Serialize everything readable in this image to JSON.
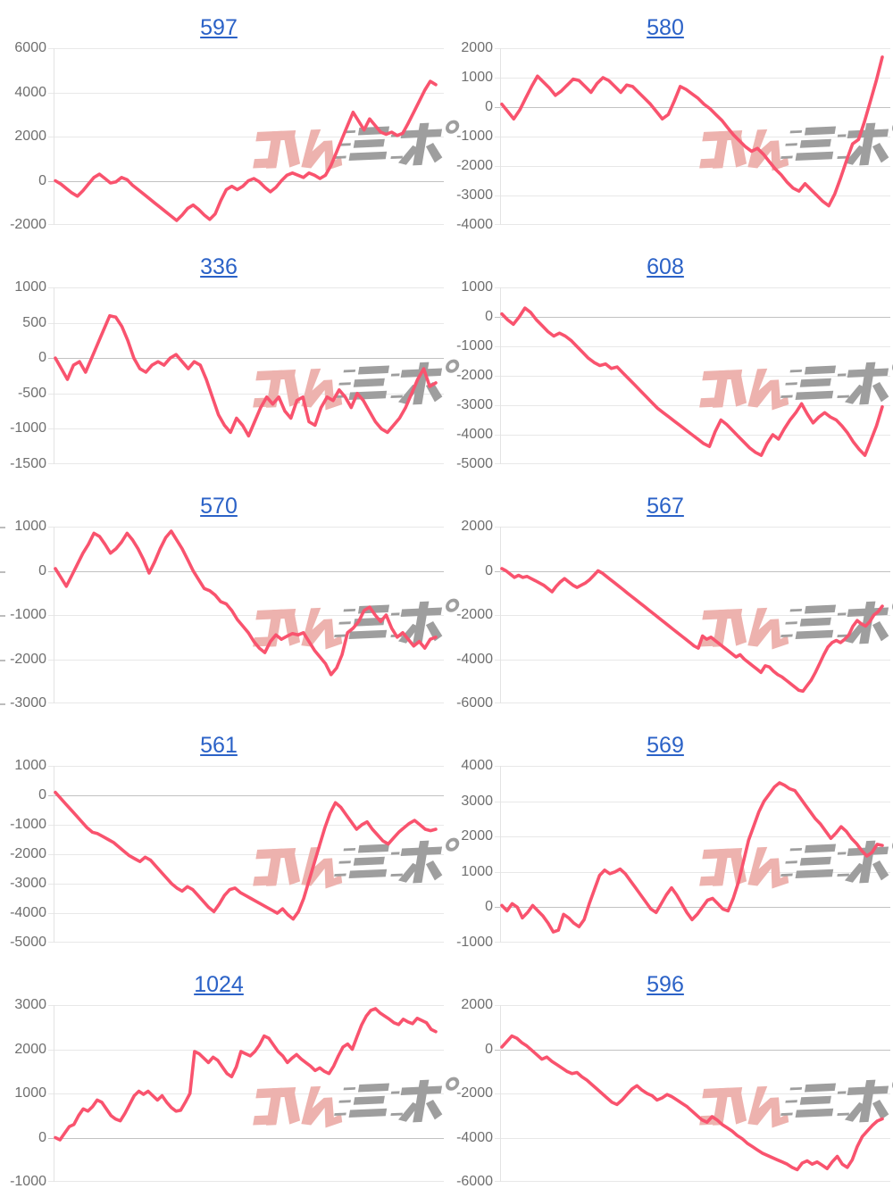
{
  "page": {
    "background": "#ffffff"
  },
  "style": {
    "title_link_color": "#2b62c7",
    "line_color": "#f9536e",
    "grid_line": "#e8e8e8",
    "zero_line": "#c2c2c2",
    "plot_border": "#e3e3e3",
    "tick_label_color": "#6f6f6f"
  },
  "watermark": {
    "text": "みんレポ",
    "pink_color": "#edb2ae",
    "gray_color": "#9e9e9e"
  },
  "chart_data": [
    {
      "type": "line",
      "title": "597",
      "ymax": 6000,
      "ymin": -2000,
      "ystep": 2000,
      "yticks": [
        "6000",
        "4000",
        "2000",
        "0",
        "-2000"
      ],
      "values": [
        0,
        -150,
        -350,
        -550,
        -700,
        -450,
        -150,
        150,
        300,
        100,
        -100,
        -50,
        150,
        50,
        -200,
        -400,
        -600,
        -800,
        -1000,
        -1200,
        -1400,
        -1600,
        -1800,
        -1550,
        -1250,
        -1100,
        -1300,
        -1550,
        -1750,
        -1500,
        -900,
        -400,
        -250,
        -400,
        -250,
        0,
        100,
        -50,
        -300,
        -500,
        -300,
        0,
        250,
        350,
        250,
        150,
        350,
        250,
        100,
        250,
        700,
        1300,
        1900,
        2500,
        3100,
        2700,
        2300,
        2800,
        2500,
        2200,
        2100,
        2200,
        2050,
        2150,
        2600,
        3100,
        3600,
        4100,
        4500,
        4350
      ]
    },
    {
      "type": "line",
      "title": "580",
      "ymax": 2000,
      "ymin": -4000,
      "ystep": 1000,
      "yticks": [
        "2000",
        "1000",
        "0",
        "-1000",
        "-2000",
        "-3000",
        "-4000"
      ],
      "values": [
        100,
        -150,
        -400,
        -100,
        300,
        700,
        1050,
        850,
        650,
        400,
        550,
        750,
        950,
        900,
        700,
        500,
        800,
        1000,
        900,
        700,
        500,
        750,
        700,
        500,
        300,
        100,
        -150,
        -400,
        -250,
        200,
        700,
        600,
        450,
        300,
        100,
        -50,
        -250,
        -450,
        -700,
        -950,
        -1150,
        -1350,
        -1500,
        -1400,
        -1600,
        -1850,
        -2100,
        -2300,
        -2550,
        -2750,
        -2850,
        -2600,
        -2800,
        -3000,
        -3200,
        -3350,
        -2950,
        -2400,
        -1800,
        -1250,
        -1100,
        -500,
        200,
        900,
        1700
      ]
    },
    {
      "type": "line",
      "title": "336",
      "ymax": 1000,
      "ymin": -1500,
      "ystep": 500,
      "yticks": [
        "1000",
        "500",
        "0",
        "-500",
        "-1000",
        "-1500"
      ],
      "values": [
        0,
        -150,
        -300,
        -100,
        -50,
        -200,
        0,
        200,
        400,
        600,
        580,
        450,
        250,
        0,
        -150,
        -200,
        -100,
        -50,
        -100,
        0,
        50,
        -50,
        -150,
        -50,
        -100,
        -300,
        -550,
        -800,
        -950,
        -1050,
        -850,
        -950,
        -1100,
        -900,
        -700,
        -550,
        -650,
        -550,
        -750,
        -850,
        -600,
        -550,
        -900,
        -950,
        -700,
        -550,
        -600,
        -450,
        -550,
        -700,
        -500,
        -600,
        -750,
        -900,
        -1000,
        -1050,
        -950,
        -850,
        -700,
        -500,
        -300,
        -150,
        -400,
        -350
      ]
    },
    {
      "type": "line",
      "title": "608",
      "ymax": 1000,
      "ymin": -5000,
      "ystep": 1000,
      "yticks": [
        "1000",
        "0",
        "-1000",
        "-2000",
        "-3000",
        "-4000",
        "-5000"
      ],
      "values": [
        100,
        -100,
        -250,
        0,
        300,
        150,
        -100,
        -300,
        -500,
        -650,
        -550,
        -650,
        -800,
        -1000,
        -1200,
        -1400,
        -1550,
        -1650,
        -1600,
        -1750,
        -1700,
        -1900,
        -2100,
        -2300,
        -2500,
        -2700,
        -2900,
        -3100,
        -3250,
        -3400,
        -3550,
        -3700,
        -3850,
        -4000,
        -4150,
        -4300,
        -4400,
        -3900,
        -3500,
        -3650,
        -3850,
        -4050,
        -4250,
        -4450,
        -4600,
        -4700,
        -4300,
        -4000,
        -4150,
        -3800,
        -3500,
        -3250,
        -2950,
        -3300,
        -3600,
        -3400,
        -3250,
        -3400,
        -3500,
        -3700,
        -3950,
        -4250,
        -4500,
        -4700,
        -4200,
        -3700,
        -3050
      ]
    },
    {
      "type": "line",
      "title": "570",
      "ymax": 1000,
      "ymin": -3000,
      "ystep": 1000,
      "yticks": [
        "1000",
        "0",
        "-1000",
        "-2000",
        "-3000"
      ],
      "edge_ticks_left": true,
      "values": [
        50,
        -150,
        -350,
        -100,
        150,
        400,
        600,
        850,
        780,
        600,
        400,
        500,
        650,
        850,
        700,
        500,
        250,
        -50,
        200,
        500,
        750,
        900,
        700,
        500,
        250,
        0,
        -200,
        -400,
        -450,
        -550,
        -700,
        -750,
        -900,
        -1100,
        -1250,
        -1400,
        -1600,
        -1750,
        -1850,
        -1600,
        -1450,
        -1550,
        -1480,
        -1420,
        -1450,
        -1400,
        -1600,
        -1800,
        -1950,
        -2100,
        -2350,
        -2200,
        -1900,
        -1400,
        -1300,
        -1150,
        -900,
        -820,
        -1000,
        -1150,
        -1000,
        -1300,
        -1500,
        -1400,
        -1550,
        -1700,
        -1600,
        -1750,
        -1550,
        -1500
      ]
    },
    {
      "type": "line",
      "title": "567",
      "ymax": 2000,
      "ymin": -6000,
      "ystep": 2000,
      "yticks": [
        "2000",
        "0",
        "-2000",
        "-4000",
        "-6000"
      ],
      "values": [
        100,
        0,
        -150,
        -300,
        -200,
        -300,
        -250,
        -350,
        -450,
        -550,
        -650,
        -800,
        -950,
        -700,
        -500,
        -350,
        -500,
        -650,
        -750,
        -650,
        -550,
        -400,
        -200,
        0,
        -100,
        -250,
        -400,
        -550,
        -700,
        -850,
        -1000,
        -1150,
        -1300,
        -1450,
        -1600,
        -1750,
        -1900,
        -2050,
        -2200,
        -2350,
        -2500,
        -2650,
        -2800,
        -2950,
        -3100,
        -3250,
        -3400,
        -3500,
        -2950,
        -3100,
        -3000,
        -3150,
        -3300,
        -3450,
        -3600,
        -3750,
        -3900,
        -3800,
        -4000,
        -4150,
        -4300,
        -4450,
        -4600,
        -4300,
        -4350,
        -4550,
        -4700,
        -4800,
        -4950,
        -5100,
        -5250,
        -5400,
        -5450,
        -5200,
        -4950,
        -4600,
        -4200,
        -3800,
        -3450,
        -3250,
        -3150,
        -3250,
        -3100,
        -2900,
        -2500,
        -2250,
        -2400,
        -2500,
        -2300,
        -2000,
        -1850,
        -1600
      ]
    },
    {
      "type": "line",
      "title": "561",
      "ymax": 1000,
      "ymin": -5000,
      "ystep": 1000,
      "yticks": [
        "1000",
        "0",
        "-1000",
        "-2000",
        "-3000",
        "-4000",
        "-5000"
      ],
      "values": [
        100,
        -100,
        -300,
        -500,
        -700,
        -900,
        -1100,
        -1250,
        -1300,
        -1400,
        -1500,
        -1600,
        -1750,
        -1900,
        -2050,
        -2150,
        -2250,
        -2100,
        -2200,
        -2400,
        -2600,
        -2800,
        -3000,
        -3150,
        -3250,
        -3100,
        -3200,
        -3400,
        -3600,
        -3800,
        -3950,
        -3700,
        -3400,
        -3200,
        -3150,
        -3300,
        -3400,
        -3500,
        -3600,
        -3700,
        -3800,
        -3900,
        -4000,
        -3850,
        -4050,
        -4200,
        -3950,
        -3500,
        -2900,
        -2300,
        -1700,
        -1100,
        -600,
        -250,
        -400,
        -650,
        -900,
        -1150,
        -1000,
        -900,
        -1150,
        -1350,
        -1550,
        -1650,
        -1450,
        -1250,
        -1100,
        -950,
        -850,
        -1000,
        -1150,
        -1200,
        -1150
      ]
    },
    {
      "type": "line",
      "title": "569",
      "ymax": 4000,
      "ymin": -1000,
      "ystep": 1000,
      "yticks": [
        "4000",
        "3000",
        "2000",
        "1000",
        "0",
        "-1000"
      ],
      "values": [
        50,
        -100,
        100,
        0,
        -300,
        -150,
        50,
        -100,
        -250,
        -450,
        -700,
        -650,
        -200,
        -300,
        -450,
        -550,
        -350,
        100,
        500,
        900,
        1050,
        950,
        1000,
        1080,
        950,
        750,
        550,
        350,
        150,
        -50,
        -150,
        100,
        350,
        550,
        350,
        100,
        -150,
        -350,
        -200,
        0,
        200,
        250,
        100,
        -50,
        -100,
        250,
        700,
        1300,
        1900,
        2300,
        2700,
        3000,
        3200,
        3400,
        3520,
        3450,
        3350,
        3300,
        3100,
        2900,
        2700,
        2500,
        2350,
        2150,
        1950,
        2100,
        2280,
        2150,
        1950,
        1800,
        1600,
        1450,
        1550,
        1780,
        1750
      ]
    },
    {
      "type": "line",
      "title": "1024",
      "ymax": 3000,
      "ymin": -1000,
      "ystep": 1000,
      "yticks": [
        "3000",
        "2000",
        "1000",
        "0",
        "-1000"
      ],
      "values": [
        0,
        -50,
        100,
        250,
        300,
        500,
        650,
        600,
        700,
        850,
        800,
        650,
        500,
        420,
        380,
        550,
        750,
        950,
        1050,
        980,
        1050,
        950,
        850,
        950,
        800,
        680,
        600,
        620,
        800,
        1000,
        1950,
        1900,
        1800,
        1700,
        1820,
        1750,
        1600,
        1450,
        1380,
        1600,
        1950,
        1900,
        1850,
        1950,
        2100,
        2300,
        2250,
        2100,
        1950,
        1850,
        1700,
        1800,
        1880,
        1780,
        1700,
        1620,
        1520,
        1580,
        1500,
        1450,
        1620,
        1850,
        2050,
        2120,
        2000,
        2280,
        2550,
        2750,
        2880,
        2920,
        2820,
        2750,
        2680,
        2600,
        2560,
        2680,
        2620,
        2580,
        2700,
        2650,
        2600,
        2450,
        2400
      ]
    },
    {
      "type": "line",
      "title": "596",
      "ymax": 2000,
      "ymin": -6000,
      "ystep": 2000,
      "yticks": [
        "2000",
        "0",
        "-2000",
        "-4000",
        "-6000"
      ],
      "values": [
        100,
        350,
        600,
        500,
        300,
        150,
        -50,
        -250,
        -450,
        -350,
        -550,
        -700,
        -850,
        -1000,
        -1100,
        -1050,
        -1250,
        -1400,
        -1600,
        -1800,
        -2000,
        -2200,
        -2400,
        -2500,
        -2300,
        -2050,
        -1800,
        -1650,
        -1850,
        -2000,
        -2100,
        -2300,
        -2200,
        -2050,
        -2150,
        -2300,
        -2450,
        -2600,
        -2800,
        -3000,
        -3200,
        -3300,
        -3050,
        -3200,
        -3400,
        -3550,
        -3700,
        -3900,
        -4050,
        -4250,
        -4400,
        -4550,
        -4700,
        -4800,
        -4900,
        -5000,
        -5100,
        -5200,
        -5350,
        -5450,
        -5150,
        -5050,
        -5200,
        -5100,
        -5250,
        -5400,
        -5100,
        -4850,
        -5200,
        -5350,
        -5000,
        -4400,
        -3950,
        -3700,
        -3450,
        -3250,
        -3150
      ]
    }
  ]
}
